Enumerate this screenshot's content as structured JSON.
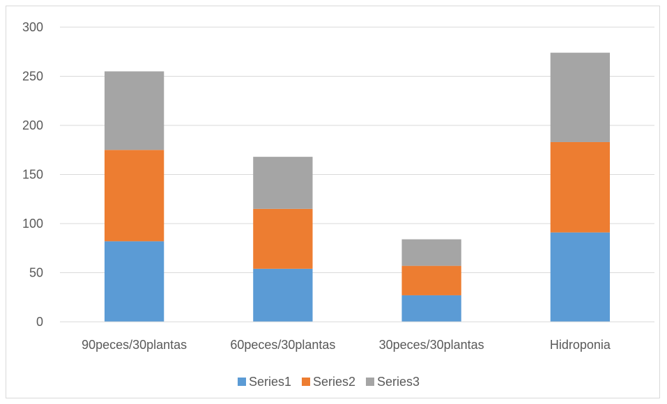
{
  "chart_data": {
    "type": "bar",
    "stacked": true,
    "title": "",
    "xlabel": "",
    "ylabel": "",
    "categories": [
      "90peces/30plantas",
      "60peces/30plantas",
      "30peces/30plantas",
      "Hidroponia"
    ],
    "series": [
      {
        "name": "Series1",
        "color": "#5b9bd5",
        "values": [
          82,
          54,
          27,
          91
        ]
      },
      {
        "name": "Series2",
        "color": "#ed7d31",
        "values": [
          93,
          61,
          30,
          92
        ]
      },
      {
        "name": "Series3",
        "color": "#a5a5a5",
        "values": [
          80,
          53,
          27,
          91
        ]
      }
    ],
    "ylim": [
      0,
      300
    ],
    "yticks": [
      "0",
      "50",
      "100",
      "150",
      "200",
      "250",
      "300"
    ],
    "grid": true,
    "legend": "bottom",
    "colors": {
      "gridline": "#d9d9d9",
      "axis": "#d9d9d9",
      "text": "#595959"
    }
  }
}
